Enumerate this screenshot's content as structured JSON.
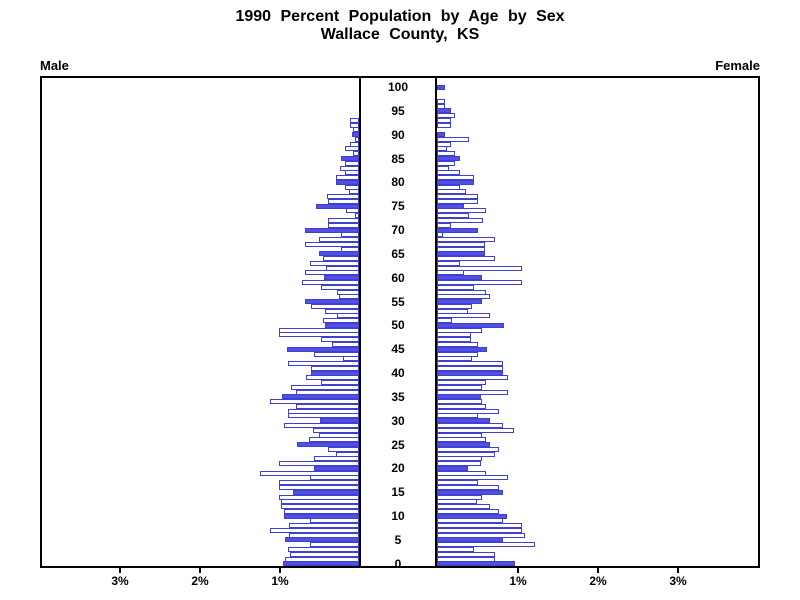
{
  "title": {
    "line1": "1990 Percent Population by Age by Sex",
    "line2": "Wallace County, KS"
  },
  "panel_labels": {
    "left": "Male",
    "right": "Female"
  },
  "axis": {
    "left_tick_labels": [
      "3%",
      "2%",
      "1%"
    ],
    "right_tick_labels": [
      "1%",
      "2%",
      "3%"
    ],
    "age_tick_labels": [
      0,
      5,
      10,
      15,
      20,
      25,
      30,
      35,
      40,
      45,
      50,
      55,
      60,
      65,
      70,
      75,
      80,
      85,
      90,
      95,
      100
    ]
  },
  "colors": {
    "bar_fill": "#5050e6",
    "bar_outline": "#4040d0",
    "bar_empty_fill": "#ffffff",
    "axis_line": "#000000",
    "background": "#ffffff",
    "text": "#000000"
  },
  "chart_data": {
    "type": "bar",
    "variant": "population-pyramid",
    "title": "1990 Percent Population by Age by Sex",
    "subtitle": "Wallace County, KS",
    "unit": "percent of total population",
    "x_axis": {
      "ticks_percent": [
        1,
        2,
        3
      ],
      "max_percent": 4,
      "grid": false
    },
    "y_axis": {
      "ages": "single years 0-100",
      "labeled_every": 5
    },
    "filled_bar_rule": "ages divisible by 5 are solid-filled; other ages are white with blue outline",
    "legend": "none",
    "series": [
      {
        "name": "Male",
        "side": "left",
        "values_by_age_0_to_100": [
          0.95,
          0.92,
          0.86,
          0.89,
          0.61,
          0.93,
          0.88,
          1.11,
          0.88,
          0.61,
          0.94,
          0.94,
          0.97,
          0.97,
          1.0,
          0.82,
          1.0,
          1.0,
          0.61,
          1.24,
          0.56,
          1.0,
          0.56,
          0.29,
          0.39,
          0.77,
          0.62,
          0.5,
          0.57,
          0.94,
          0.49,
          0.89,
          0.89,
          0.79,
          1.11,
          0.96,
          0.79,
          0.85,
          0.47,
          0.66,
          0.6,
          0.6,
          0.89,
          0.2,
          0.56,
          0.9,
          0.34,
          0.48,
          1.0,
          1.0,
          0.43,
          0.45,
          0.28,
          0.43,
          0.6,
          0.67,
          0.25,
          0.28,
          0.48,
          0.71,
          0.44,
          0.67,
          0.41,
          0.61,
          0.45,
          0.5,
          0.22,
          0.67,
          0.5,
          0.22,
          0.68,
          0.39,
          0.39,
          0.05,
          0.16,
          0.54,
          0.39,
          0.4,
          0.12,
          0.18,
          0.29,
          0.29,
          0.17,
          0.24,
          0.17,
          0.22,
          0.08,
          0.17,
          0.11,
          0.05,
          0.09,
          0.08,
          0.11,
          0.11,
          0,
          0,
          0,
          0,
          0,
          0,
          0
        ]
      },
      {
        "name": "Female",
        "side": "right",
        "values_by_age_0_to_100": [
          0.97,
          0.72,
          0.72,
          0.46,
          1.22,
          0.83,
          1.1,
          1.06,
          1.06,
          0.83,
          0.87,
          0.78,
          0.66,
          0.5,
          0.56,
          0.83,
          0.78,
          0.51,
          0.89,
          0.61,
          0.39,
          0.55,
          0.56,
          0.72,
          0.77,
          0.66,
          0.61,
          0.56,
          0.96,
          0.83,
          0.66,
          0.51,
          0.78,
          0.61,
          0.56,
          0.55,
          0.89,
          0.56,
          0.61,
          0.89,
          0.83,
          0.83,
          0.83,
          0.44,
          0.51,
          0.63,
          0.51,
          0.43,
          0.43,
          0.56,
          0.84,
          0.19,
          0.66,
          0.39,
          0.44,
          0.56,
          0.66,
          0.61,
          0.46,
          1.06,
          0.56,
          0.34,
          1.06,
          0.29,
          0.72,
          0.6,
          0.6,
          0.6,
          0.72,
          0.08,
          0.51,
          0.17,
          0.57,
          0.4,
          0.61,
          0.34,
          0.51,
          0.51,
          0.36,
          0.29,
          0.46,
          0.46,
          0.29,
          0.15,
          0.22,
          0.29,
          0.22,
          0.13,
          0.17,
          0.4,
          0.1,
          0,
          0.17,
          0.17,
          0.22,
          0.17,
          0.1,
          0.1,
          0,
          0,
          0.1
        ]
      }
    ]
  }
}
